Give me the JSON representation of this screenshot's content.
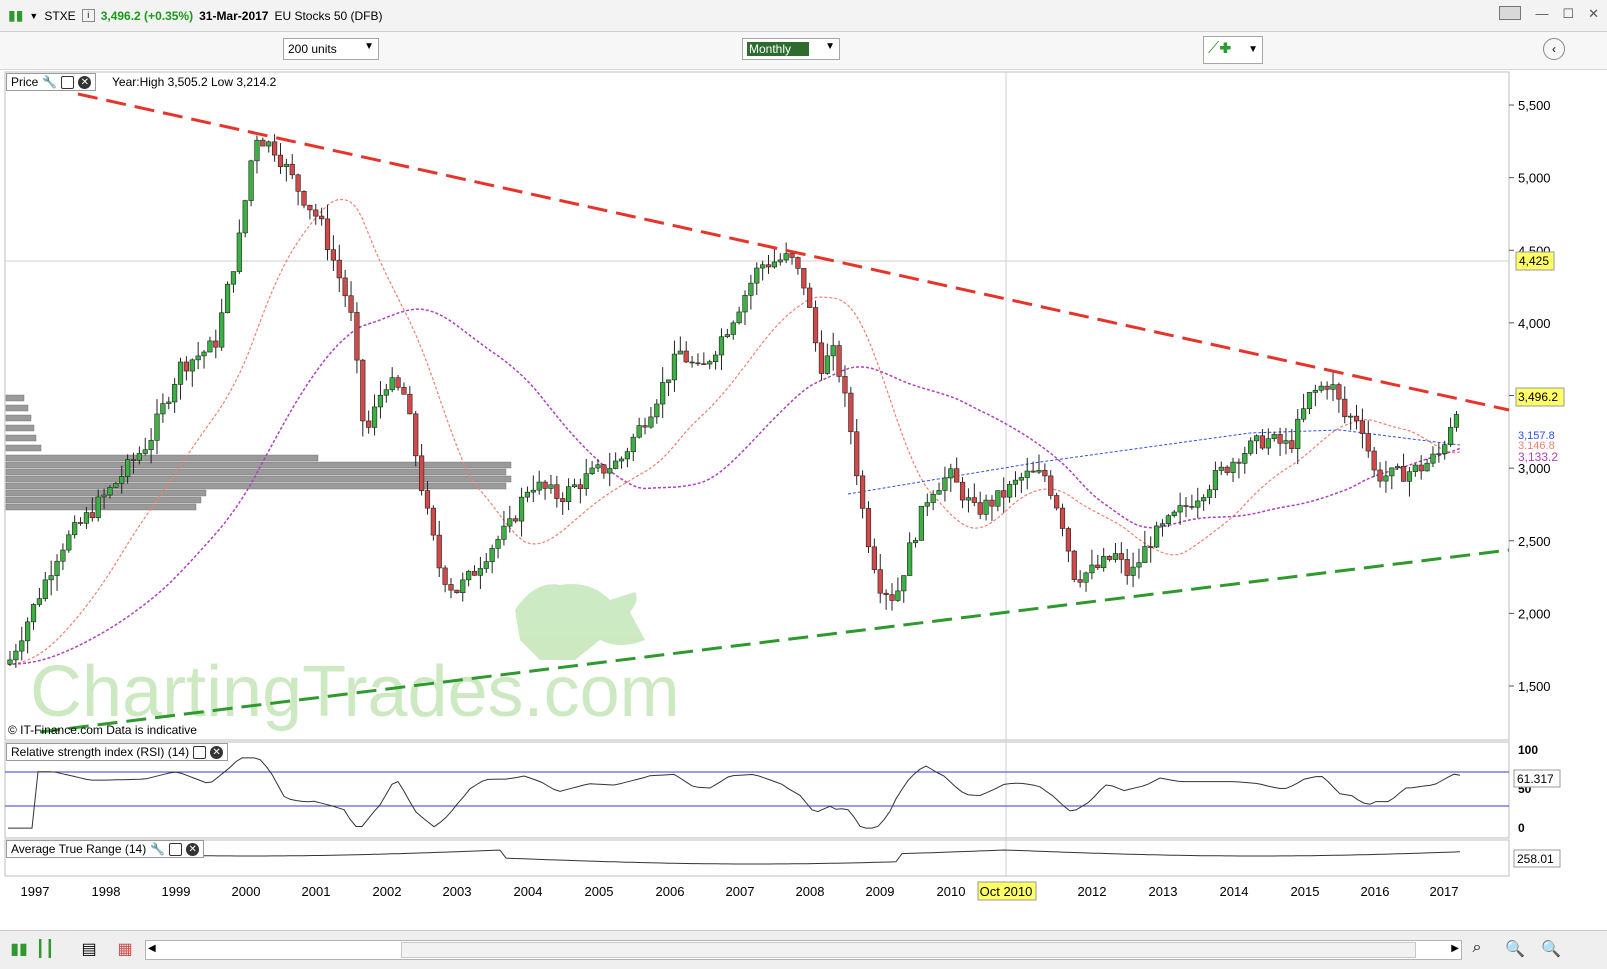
{
  "window": {
    "symbol": "STXE",
    "price_change": "3,496.2 (+0.35%)",
    "date": "31-Mar-2017",
    "instrument": "EU Stocks 50 (DFB)"
  },
  "toolbar": {
    "units_value": "200 units",
    "timeframe_value": "Monthly"
  },
  "price_panel": {
    "label": "Price",
    "year_range": "Year:High 3,505.2 Low 3,214.2",
    "y_ticks": [
      "5,500",
      "5,000",
      "4,500",
      "4,000",
      "3,500",
      "3,000",
      "2,500",
      "2,000",
      "1,500"
    ],
    "markers": {
      "crosshair_price": "4,425",
      "last_price": "3,496.2",
      "ma_blue": "3,157.8",
      "ma_red": "3,146.8",
      "ma_purple": "3,133.2"
    },
    "copyright": "© IT-Finance.com  Data is indicative",
    "watermark": "ChartingTrades.com"
  },
  "rsi_panel": {
    "label": "Relative strength index (RSI) (14)",
    "ticks": [
      "100",
      "50",
      "0"
    ],
    "value": "61.317"
  },
  "atr_panel": {
    "label": "Average True Range (14)",
    "value": "258.01"
  },
  "x_axis": {
    "labels": [
      "1997",
      "1998",
      "1999",
      "2000",
      "2001",
      "2002",
      "2003",
      "2004",
      "2005",
      "2006",
      "2007",
      "2008",
      "2009",
      "2010",
      "Oct 2010",
      "2012",
      "2013",
      "2014",
      "2015",
      "2016",
      "2017"
    ]
  },
  "colors": {
    "bull": "#3cb043",
    "bear": "#d04a4a",
    "resistance": "#e8332a",
    "support": "#2e9a2e",
    "ma_fast": "#f08070",
    "ma_slow": "#b040c0",
    "trend_blue": "#3050e0",
    "crosshair_label": "#ffff66"
  }
}
